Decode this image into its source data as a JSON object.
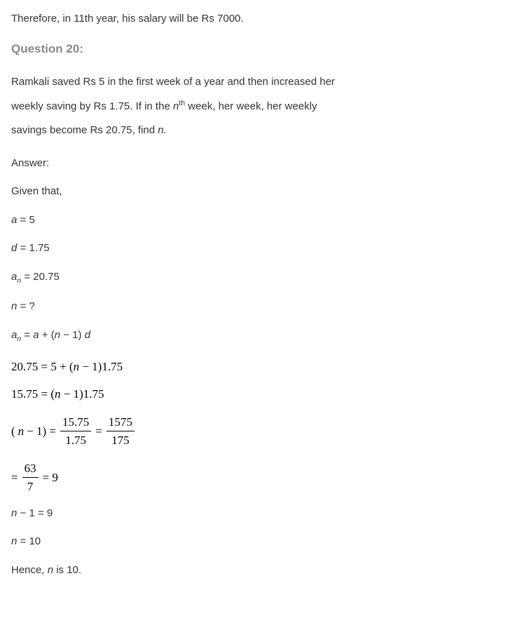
{
  "intro_line": "Therefore, in 11th year, his salary will be Rs 7000.",
  "question_label": "Question 20:",
  "problem": {
    "p1": "Ramkali saved Rs 5 in the first week of a year and then increased her",
    "p2a": "weekly saving by Rs 1.75. If in the ",
    "p2b_var": "n",
    "p2b_sup": "th",
    "p2c": " week, her week, her weekly",
    "p3a": "savings become Rs 20.75, find ",
    "p3b_var": "n."
  },
  "answer_label": "Answer:",
  "given_label": "Given that,",
  "eq1_a": "a",
  "eq1_b": " = 5",
  "eq2_a": "d",
  "eq2_b": " = 1.75",
  "eq3_a": "a",
  "eq3_sub": "n",
  "eq3_b": " = 20.75",
  "eq4_a": "n",
  "eq4_b": " = ?",
  "eq5_a": "a",
  "eq5_sub1": "n",
  "eq5_b": " = ",
  "eq5_c": "a",
  "eq5_d": " + (",
  "eq5_e": "n",
  "eq5_f": " − 1) ",
  "eq5_g": "d",
  "m1_a": "20.75 = 5 + (",
  "m1_n": "n",
  "m1_b": " − 1)1.75",
  "m2_a": "15.75 = (",
  "m2_n": "n",
  "m2_b": " − 1)1.75",
  "m3_a": "(",
  "m3_n": "n",
  "m3_b": " − 1) = ",
  "m3_num1": "15.75",
  "m3_den1": "1.75",
  "m3_eq": " = ",
  "m3_num2": "1575",
  "m3_den2": "175",
  "m4_a": "= ",
  "m4_num": "63",
  "m4_den": "7",
  "m4_b": " = 9",
  "r1_a": "n",
  "r1_b": " − 1 = 9",
  "r2_a": "n",
  "r2_b": " = 10",
  "final_a": "Hence, ",
  "final_b": "n",
  "final_c": " is 10."
}
